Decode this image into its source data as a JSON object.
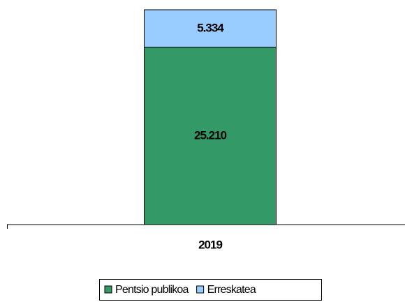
{
  "chart_data": {
    "type": "stacked-bar",
    "categories": [
      "2019"
    ],
    "series": [
      {
        "name": "Pentsio publikoa",
        "color": "#339966",
        "values": [
          25210
        ],
        "value_labels": [
          "25.210"
        ]
      },
      {
        "name": "Erreskatea",
        "color": "#99ccff",
        "values": [
          5334
        ],
        "value_labels": [
          "5.334"
        ]
      }
    ],
    "legend": "bottom"
  }
}
